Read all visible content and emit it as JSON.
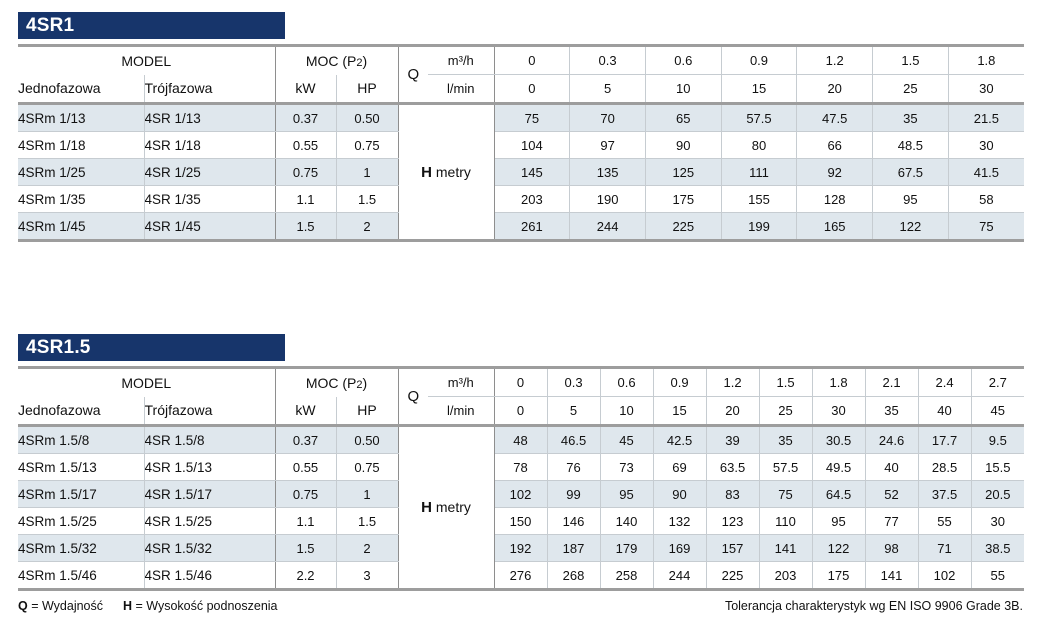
{
  "labels": {
    "model": "MODEL",
    "single_phase": "Jednofazowa",
    "three_phase": "Trójfazowa",
    "power_prefix": "MOC (P",
    "power_sub": "2",
    "power_suffix": ")",
    "kw": "kW",
    "hp": "HP",
    "q": "Q",
    "m3h": "m³/h",
    "lmin": "l/min",
    "h": "H",
    "metry": "metry"
  },
  "colors": {
    "navy": "#17356b",
    "row_shade": "#dfe7ed",
    "border_thick": "#9d9d9d",
    "border_dark": "#8e8e8e",
    "border_light": "#c6ccd1"
  },
  "tables": [
    {
      "title": "4SR1",
      "flow_m3h": [
        "0",
        "0.3",
        "0.6",
        "0.9",
        "1.2",
        "1.5",
        "1.8"
      ],
      "flow_lmin": [
        "0",
        "5",
        "10",
        "15",
        "20",
        "25",
        "30"
      ],
      "rows": [
        {
          "single": "4SRm 1/13",
          "three": "4SR 1/13",
          "kw": "0.37",
          "hp": "0.50",
          "head": [
            "75",
            "70",
            "65",
            "57.5",
            "47.5",
            "35",
            "21.5"
          ]
        },
        {
          "single": "4SRm 1/18",
          "three": "4SR 1/18",
          "kw": "0.55",
          "hp": "0.75",
          "head": [
            "104",
            "97",
            "90",
            "80",
            "66",
            "48.5",
            "30"
          ]
        },
        {
          "single": "4SRm 1/25",
          "three": "4SR 1/25",
          "kw": "0.75",
          "hp": "1",
          "head": [
            "145",
            "135",
            "125",
            "111",
            "92",
            "67.5",
            "41.5"
          ]
        },
        {
          "single": "4SRm 1/35",
          "three": "4SR 1/35",
          "kw": "1.1",
          "hp": "1.5",
          "head": [
            "203",
            "190",
            "175",
            "155",
            "128",
            "95",
            "58"
          ]
        },
        {
          "single": "4SRm 1/45",
          "three": "4SR 1/45",
          "kw": "1.5",
          "hp": "2",
          "head": [
            "261",
            "244",
            "225",
            "199",
            "165",
            "122",
            "75"
          ]
        }
      ]
    },
    {
      "title": "4SR1.5",
      "flow_m3h": [
        "0",
        "0.3",
        "0.6",
        "0.9",
        "1.2",
        "1.5",
        "1.8",
        "2.1",
        "2.4",
        "2.7"
      ],
      "flow_lmin": [
        "0",
        "5",
        "10",
        "15",
        "20",
        "25",
        "30",
        "35",
        "40",
        "45"
      ],
      "rows": [
        {
          "single": "4SRm 1.5/8",
          "three": "4SR 1.5/8",
          "kw": "0.37",
          "hp": "0.50",
          "head": [
            "48",
            "46.5",
            "45",
            "42.5",
            "39",
            "35",
            "30.5",
            "24.6",
            "17.7",
            "9.5"
          ]
        },
        {
          "single": "4SRm 1.5/13",
          "three": "4SR 1.5/13",
          "kw": "0.55",
          "hp": "0.75",
          "head": [
            "78",
            "76",
            "73",
            "69",
            "63.5",
            "57.5",
            "49.5",
            "40",
            "28.5",
            "15.5"
          ]
        },
        {
          "single": "4SRm 1.5/17",
          "three": "4SR 1.5/17",
          "kw": "0.75",
          "hp": "1",
          "head": [
            "102",
            "99",
            "95",
            "90",
            "83",
            "75",
            "64.5",
            "52",
            "37.5",
            "20.5"
          ]
        },
        {
          "single": "4SRm 1.5/25",
          "three": "4SR 1.5/25",
          "kw": "1.1",
          "hp": "1.5",
          "head": [
            "150",
            "146",
            "140",
            "132",
            "123",
            "110",
            "95",
            "77",
            "55",
            "30"
          ]
        },
        {
          "single": "4SRm 1.5/32",
          "three": "4SR 1.5/32",
          "kw": "1.5",
          "hp": "2",
          "head": [
            "192",
            "187",
            "179",
            "169",
            "157",
            "141",
            "122",
            "98",
            "71",
            "38.5"
          ]
        },
        {
          "single": "4SRm 1.5/46",
          "three": "4SR 1.5/46",
          "kw": "2.2",
          "hp": "3",
          "head": [
            "276",
            "268",
            "258",
            "244",
            "225",
            "203",
            "175",
            "141",
            "102",
            "55"
          ]
        }
      ]
    }
  ],
  "footer": {
    "q_symbol": "Q",
    "q_text": " = Wydajność",
    "h_symbol": "H",
    "h_text": " = Wysokość podnoszenia",
    "tolerance": "Tolerancja charakterystyk wg EN ISO 9906 Grade 3B."
  }
}
